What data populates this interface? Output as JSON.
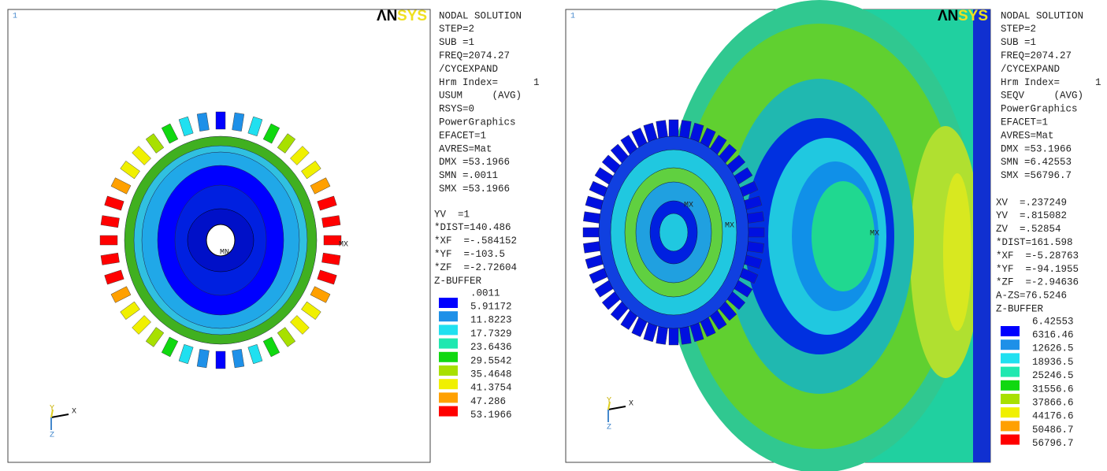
{
  "left": {
    "corner": "1",
    "logo": {
      "a": "ΛN",
      "b": "SYS"
    },
    "info": [
      "NODAL SOLUTION",
      "STEP=2",
      "SUB =1",
      "FREQ=2074.27",
      "/CYCEXPAND",
      "Hrm Index=      1",
      "USUM     (AVG)",
      "RSYS=0",
      "PowerGraphics",
      "EFACET=1",
      "AVRES=Mat",
      "DMX =53.1966",
      "SMN =.0011",
      "SMX =53.1966"
    ],
    "view": [
      "YV  =1",
      "*DIST=140.486",
      "*XF  =-.584152",
      "*YF  =-103.5",
      "*ZF  =-2.72604",
      "Z-BUFFER"
    ],
    "legend": {
      "labels": [
        ".0011",
        "5.91172",
        "11.8223",
        "17.7329",
        "23.6436",
        "29.5542",
        "35.4648",
        "41.3754",
        "47.286",
        "53.1966"
      ],
      "colors": [
        "#0000ff",
        "#1e90e8",
        "#20e0f0",
        "#20e8b0",
        "#10d810",
        "#a8e000",
        "#f0f000",
        "#ffa000",
        "#ff0000"
      ]
    },
    "markers": [
      "MN",
      "MX"
    ],
    "axes": {
      "y": "Y",
      "x": "X",
      "z": "Z"
    }
  },
  "right": {
    "corner": "1",
    "logo": {
      "a": "ΛN",
      "b": "SYS"
    },
    "info": [
      "NODAL SOLUTION",
      "STEP=2",
      "SUB =1",
      "FREQ=2074.27",
      "/CYCEXPAND",
      "Hrm Index=      1",
      "SEQV     (AVG)",
      "PowerGraphics",
      "EFACET=1",
      "AVRES=Mat",
      "DMX =53.1966",
      "SMN =6.42553",
      "SMX =56796.7"
    ],
    "view": [
      "XV  =.237249",
      "YV  =.815082",
      "ZV  =.52854",
      "*DIST=161.598",
      "*XF  =-5.28763",
      "*YF  =-94.1955",
      "*ZF  =-2.94636",
      "A-ZS=76.5246",
      "Z-BUFFER"
    ],
    "legend": {
      "labels": [
        "6.42553",
        "6316.46",
        "12626.5",
        "18936.5",
        "25246.5",
        "31556.6",
        "37866.6",
        "44176.6",
        "50486.7",
        "56796.7"
      ],
      "colors": [
        "#0000ff",
        "#1e90e8",
        "#20e0f0",
        "#20e8b0",
        "#10d810",
        "#a8e000",
        "#f0f000",
        "#ffa000",
        "#ff0000"
      ]
    },
    "markers": [
      "MX",
      "MX",
      "MX"
    ],
    "axes": {
      "y": "Y",
      "x": "X",
      "z": "Z"
    }
  }
}
